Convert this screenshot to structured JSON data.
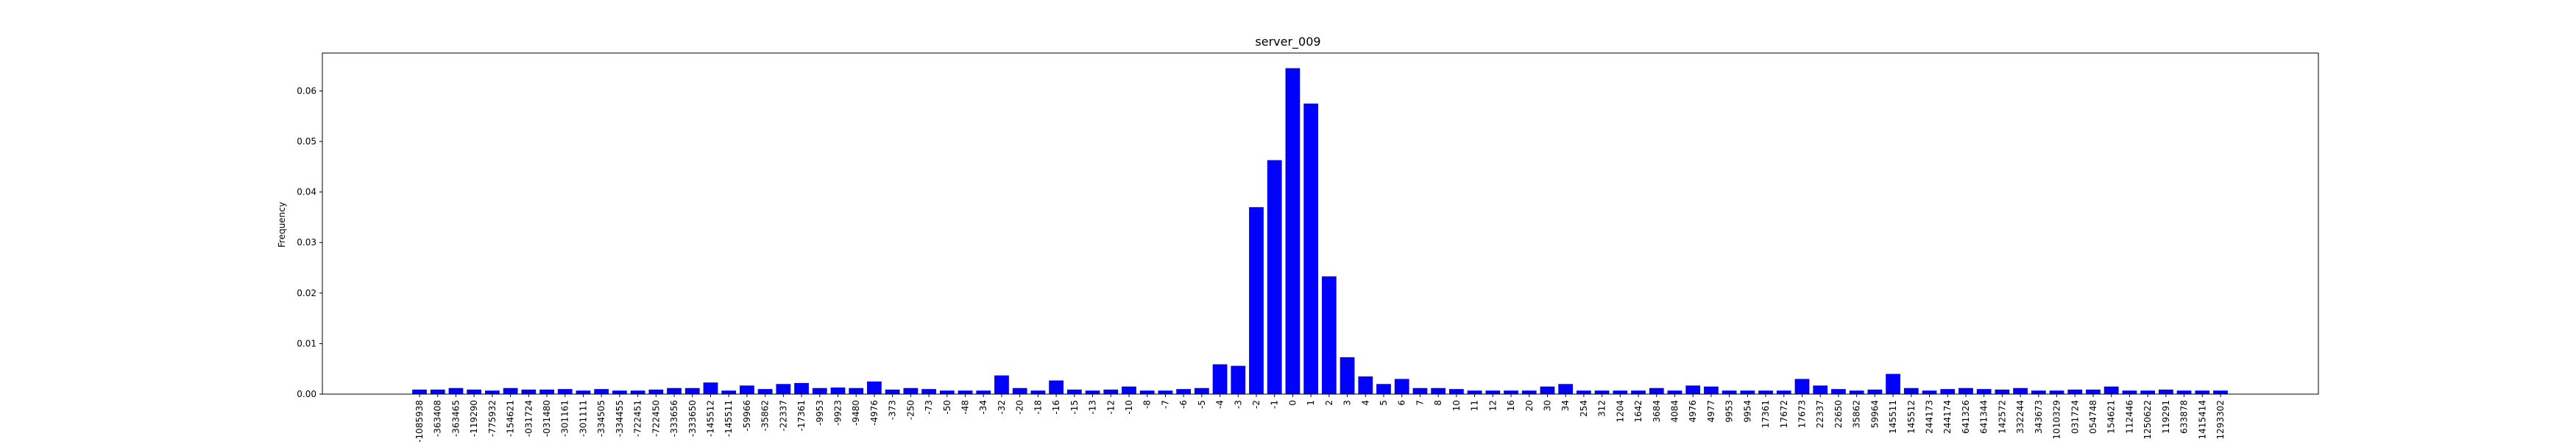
{
  "chart_data": {
    "type": "bar",
    "title": "server_009",
    "xlabel": "",
    "ylabel": "Frequency",
    "ylim": [
      0,
      0.0675
    ],
    "yticks": [
      0.0,
      0.01,
      0.02,
      0.03,
      0.04,
      0.05,
      0.06
    ],
    "ytick_labels": [
      "0.00",
      "0.01",
      "0.02",
      "0.03",
      "0.04",
      "0.05",
      "0.06"
    ],
    "grid": false,
    "bar_color": "#0000ff",
    "categories": [
      "-1085938",
      "-363408",
      "-363465",
      "-119290",
      "-775932",
      "-154621",
      "-031724",
      "-031480",
      "-301161",
      "-301111",
      "-334505",
      "-334455",
      "-722451",
      "-722450",
      "-333656",
      "-333650",
      "-145512",
      "-145511",
      "-59966",
      "-35862",
      "-22337",
      "-17361",
      "-9953",
      "-9923",
      "-9480",
      "-4976",
      "-373",
      "-250",
      "-73",
      "-50",
      "-48",
      "-34",
      "-32",
      "-20",
      "-18",
      "-16",
      "-15",
      "-13",
      "-12",
      "-10",
      "-8",
      "-7",
      "-6",
      "-5",
      "-4",
      "-3",
      "-2",
      "-1",
      "0",
      "1",
      "2",
      "3",
      "4",
      "5",
      "6",
      "7",
      "8",
      "10",
      "11",
      "12",
      "16",
      "20",
      "30",
      "34",
      "254",
      "312",
      "1204",
      "1642",
      "3684",
      "4084",
      "4976",
      "4977",
      "9953",
      "9954",
      "17361",
      "17672",
      "17673",
      "22337",
      "22650",
      "35862",
      "59964",
      "145511",
      "145512",
      "244173",
      "244174",
      "641326",
      "641344",
      "142572",
      "332244",
      "343673",
      "1010329",
      "031724",
      "054748",
      "154621",
      "112446",
      "1250622",
      "119291",
      "633878",
      "1415414",
      "1293302"
    ],
    "values": [
      0.0009,
      0.0009,
      0.0012,
      0.0009,
      0.0007,
      0.0012,
      0.0009,
      0.0009,
      0.001,
      0.0007,
      0.001,
      0.0007,
      0.0007,
      0.0009,
      0.0012,
      0.0012,
      0.0023,
      0.0007,
      0.0017,
      0.001,
      0.002,
      0.0022,
      0.0012,
      0.0013,
      0.0012,
      0.0025,
      0.0009,
      0.0012,
      0.001,
      0.0007,
      0.0007,
      0.0007,
      0.0037,
      0.0012,
      0.0007,
      0.0027,
      0.0009,
      0.0007,
      0.0009,
      0.0015,
      0.0007,
      0.0007,
      0.001,
      0.0012,
      0.0059,
      0.0056,
      0.037,
      0.0463,
      0.0645,
      0.0575,
      0.0233,
      0.0073,
      0.0035,
      0.002,
      0.003,
      0.0012,
      0.0012,
      0.001,
      0.0007,
      0.0007,
      0.0007,
      0.0007,
      0.0015,
      0.002,
      0.0007,
      0.0007,
      0.0007,
      0.0007,
      0.0012,
      0.0007,
      0.0017,
      0.0015,
      0.0007,
      0.0007,
      0.0007,
      0.0007,
      0.003,
      0.0017,
      0.001,
      0.0007,
      0.0009,
      0.004,
      0.0012,
      0.0007,
      0.001,
      0.0012,
      0.001,
      0.0009,
      0.0012,
      0.0007,
      0.0007,
      0.0009,
      0.0009,
      0.0015,
      0.0007,
      0.0007,
      0.0009,
      0.0007,
      0.0007,
      0.0007
    ]
  }
}
